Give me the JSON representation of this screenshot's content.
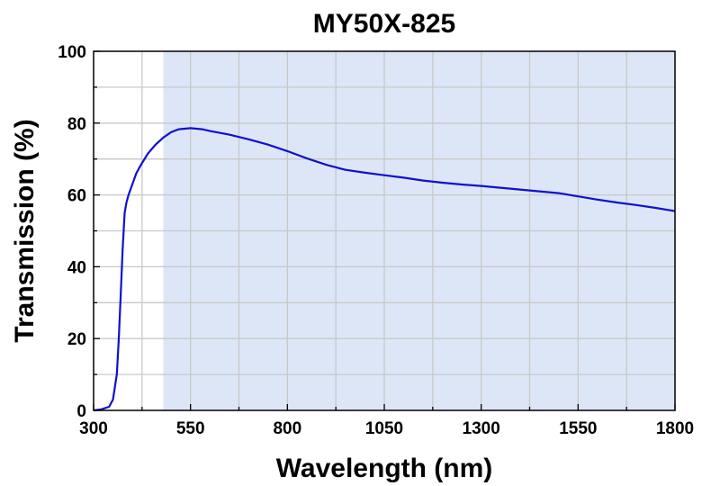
{
  "chart_data": {
    "type": "line",
    "title": "MY50X-825",
    "xlabel": "Wavelength (nm)",
    "ylabel": "Transmission (%)",
    "xlim": [
      300,
      1800
    ],
    "ylim": [
      0,
      100
    ],
    "x_ticks": [
      "300",
      "550",
      "800",
      "1050",
      "1300",
      "1550",
      "1800"
    ],
    "y_ticks": [
      "0",
      "20",
      "40",
      "60",
      "80",
      "100"
    ],
    "grid": true,
    "design_band": [
      480,
      1800
    ],
    "colors": {
      "line": "#1010d0",
      "band": "#dde6f7",
      "grid": "#c8c8c8"
    },
    "series": [
      {
        "x": [
          300,
          320,
          340,
          350,
          360,
          365,
          370,
          375,
          380,
          385,
          390,
          400,
          410,
          420,
          440,
          460,
          480,
          500,
          520,
          550,
          580,
          600,
          650,
          700,
          750,
          800,
          850,
          900,
          950,
          1000,
          1050,
          1100,
          1150,
          1200,
          1250,
          1300,
          1350,
          1400,
          1450,
          1500,
          1550,
          1600,
          1650,
          1700,
          1750,
          1800
        ],
        "y": [
          0,
          0.3,
          1,
          3,
          10,
          20,
          32,
          45,
          55,
          58,
          60,
          63,
          66,
          68,
          71.5,
          74,
          76,
          77.5,
          78.3,
          78.6,
          78.3,
          77.8,
          76.8,
          75.5,
          74,
          72.2,
          70.2,
          68.4,
          67,
          66.2,
          65.5,
          64.8,
          64,
          63.4,
          62.9,
          62.5,
          62,
          61.5,
          61,
          60.5,
          59.6,
          58.7,
          57.9,
          57.2,
          56.4,
          55.5
        ]
      }
    ]
  }
}
